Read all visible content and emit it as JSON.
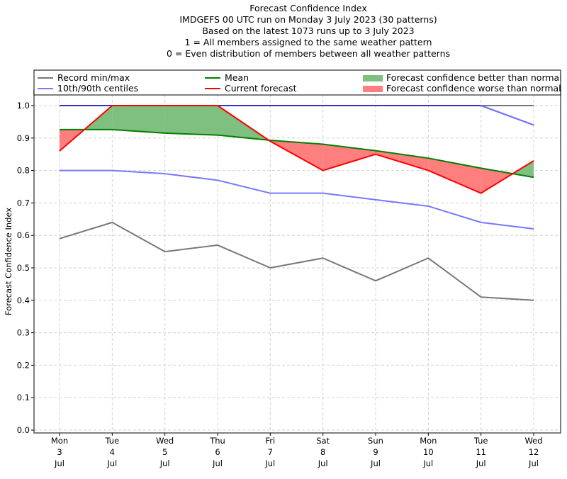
{
  "chart_data": {
    "type": "line",
    "title_lines": [
      "Forecast Confidence Index",
      "IMDGEFS 00 UTC run on Monday 3 July 2023 (30 patterns)",
      "Based on the latest 1073 runs up to 3 July 2023",
      "1 = All members assigned to the same weather pattern",
      "0 = Even distribution of members between all weather patterns"
    ],
    "xlabel": "",
    "ylabel": "Forecast Confidence Index",
    "ylim": [
      0,
      1.0
    ],
    "yticks": [
      "0.0",
      "0.1",
      "0.2",
      "0.3",
      "0.4",
      "0.5",
      "0.6",
      "0.7",
      "0.8",
      "0.9",
      "1.0"
    ],
    "ytick_values": [
      0,
      0.1,
      0.2,
      0.3,
      0.4,
      0.5,
      0.6,
      0.7,
      0.8,
      0.9,
      1.0
    ],
    "grid": true,
    "legend_position": "top",
    "categories": [
      {
        "day": "Mon",
        "date": "3",
        "month": "Jul"
      },
      {
        "day": "Tue",
        "date": "4",
        "month": "Jul"
      },
      {
        "day": "Wed",
        "date": "5",
        "month": "Jul"
      },
      {
        "day": "Thu",
        "date": "6",
        "month": "Jul"
      },
      {
        "day": "Fri",
        "date": "7",
        "month": "Jul"
      },
      {
        "day": "Sat",
        "date": "8",
        "month": "Jul"
      },
      {
        "day": "Sun",
        "date": "9",
        "month": "Jul"
      },
      {
        "day": "Mon",
        "date": "10",
        "month": "Jul"
      },
      {
        "day": "Tue",
        "date": "11",
        "month": "Jul"
      },
      {
        "day": "Wed",
        "date": "12",
        "month": "Jul"
      }
    ],
    "series": [
      {
        "name": "Record min",
        "legend": "Record min/max",
        "color": "#777777",
        "values": [
          0.59,
          0.64,
          0.55,
          0.57,
          0.5,
          0.53,
          0.46,
          0.53,
          0.41,
          0.4
        ]
      },
      {
        "name": "Record max",
        "legend": "Record min/max",
        "color": "#777777",
        "values": [
          1.0,
          1.0,
          1.0,
          1.0,
          1.0,
          1.0,
          1.0,
          1.0,
          1.0,
          1.0
        ]
      },
      {
        "name": "10th centile",
        "legend": "10th/90th centiles",
        "color": "#7777ff",
        "values": [
          0.8,
          0.8,
          0.79,
          0.77,
          0.73,
          0.73,
          0.71,
          0.69,
          0.64,
          0.62
        ]
      },
      {
        "name": "90th centile",
        "legend": "10th/90th centiles",
        "color": "#7777ff",
        "values": [
          1.0,
          1.0,
          1.0,
          1.0,
          1.0,
          1.0,
          1.0,
          1.0,
          1.0,
          0.94
        ]
      },
      {
        "name": "Mean",
        "legend": "Mean",
        "color": "#008000",
        "values": [
          0.926,
          0.926,
          0.915,
          0.909,
          0.893,
          0.881,
          0.861,
          0.838,
          0.807,
          0.779
        ]
      },
      {
        "name": "Current forecast",
        "legend": "Current forecast",
        "color": "#ff0000",
        "values": [
          0.86,
          1.0,
          1.0,
          1.0,
          0.89,
          0.8,
          0.85,
          0.8,
          0.73,
          0.83
        ]
      }
    ],
    "fills": [
      {
        "name": "Forecast confidence better than normal",
        "color": "#7fbf7f"
      },
      {
        "name": "Forecast confidence worse than normal",
        "color": "#ff7f7f"
      }
    ],
    "legend": {
      "col1": [
        "Record min/max",
        "10th/90th centiles"
      ],
      "col2": [
        "Mean",
        "Current forecast"
      ],
      "col3": [
        "Forecast confidence better than normal",
        "Forecast confidence worse than normal"
      ]
    }
  }
}
